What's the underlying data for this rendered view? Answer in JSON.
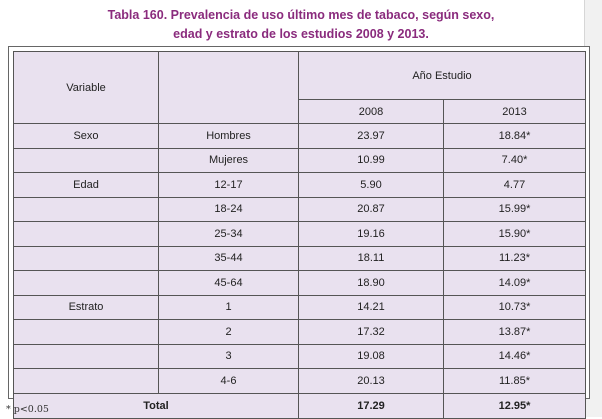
{
  "caption": {
    "line1": "Tabla  160. Prevalencia de uso último mes de tabaco, según sexo,",
    "line2": "edad y estrato de los estudios 2008 y 2013."
  },
  "header": {
    "variable": "Variable",
    "group": "Año Estudio",
    "years": [
      "2008",
      "2013"
    ]
  },
  "rows": [
    {
      "variable": "Sexo",
      "category": "Hombres",
      "v2008": "23.97",
      "v2013": "18.84*"
    },
    {
      "variable": "",
      "category": "Mujeres",
      "v2008": "10.99",
      "v2013": "7.40*"
    },
    {
      "variable": "Edad",
      "category": "12-17",
      "v2008": "5.90",
      "v2013": "4.77"
    },
    {
      "variable": "",
      "category": "18-24",
      "v2008": "20.87",
      "v2013": "15.99*"
    },
    {
      "variable": "",
      "category": "25-34",
      "v2008": "19.16",
      "v2013": "15.90*"
    },
    {
      "variable": "",
      "category": "35-44",
      "v2008": "18.11",
      "v2013": "11.23*"
    },
    {
      "variable": "",
      "category": "45-64",
      "v2008": "18.90",
      "v2013": "14.09*"
    },
    {
      "variable": "Estrato",
      "category": "1",
      "v2008": "14.21",
      "v2013": "10.73*"
    },
    {
      "variable": "",
      "category": "2",
      "v2008": "17.32",
      "v2013": "13.87*"
    },
    {
      "variable": "",
      "category": "3",
      "v2008": "19.08",
      "v2013": "14.46*"
    },
    {
      "variable": "",
      "category": "4-6",
      "v2008": "20.13",
      "v2013": "11.85*"
    }
  ],
  "total": {
    "label": "Total",
    "v2008": "17.29",
    "v2013": "12.95*"
  },
  "footnote": "*  p<0.05"
}
